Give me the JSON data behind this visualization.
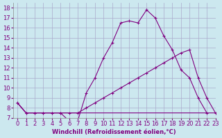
{
  "xlabel": "Windchill (Refroidissement éolien,°C)",
  "background_color": "#cce8ef",
  "grid_color": "#aaaacc",
  "line_color": "#800080",
  "xlim": [
    -0.5,
    23
  ],
  "ylim": [
    7,
    18.5
  ],
  "xticks": [
    0,
    1,
    2,
    3,
    4,
    5,
    6,
    7,
    8,
    9,
    10,
    11,
    12,
    13,
    14,
    15,
    16,
    17,
    18,
    19,
    20,
    21,
    22,
    23
  ],
  "yticks": [
    7,
    8,
    9,
    10,
    11,
    12,
    13,
    14,
    15,
    16,
    17,
    18
  ],
  "line1_x": [
    0,
    1,
    2,
    3,
    4,
    5,
    6,
    7,
    8,
    9,
    10,
    11,
    12,
    13,
    14,
    15,
    16,
    17,
    18,
    19,
    20,
    21,
    22
  ],
  "line1_y": [
    8.5,
    7.5,
    7.5,
    7.5,
    7.5,
    7.5,
    6.7,
    6.7,
    9.5,
    11.0,
    13.0,
    14.5,
    16.5,
    16.7,
    16.5,
    17.8,
    17.0,
    15.2,
    13.8,
    11.8,
    11.0,
    9.0,
    7.5
  ],
  "line2_x": [
    0,
    1,
    2,
    3,
    4,
    5,
    6,
    7,
    8,
    9,
    10,
    11,
    12,
    13,
    14,
    15,
    16,
    17,
    18,
    19,
    20,
    21,
    22,
    23
  ],
  "line2_y": [
    8.5,
    7.5,
    7.5,
    7.5,
    7.5,
    7.5,
    7.5,
    7.5,
    7.5,
    7.5,
    7.5,
    7.5,
    7.5,
    7.5,
    7.5,
    7.5,
    7.5,
    7.5,
    7.5,
    7.5,
    7.5,
    7.5,
    7.5,
    7.5
  ],
  "line3_x": [
    0,
    1,
    2,
    3,
    4,
    5,
    6,
    7,
    8,
    9,
    10,
    11,
    12,
    13,
    14,
    15,
    16,
    17,
    18,
    19,
    20,
    21,
    22,
    23
  ],
  "line3_y": [
    8.5,
    7.5,
    7.5,
    7.5,
    7.5,
    7.5,
    7.5,
    7.5,
    8.0,
    8.5,
    9.0,
    9.5,
    10.0,
    10.5,
    11.0,
    11.5,
    12.0,
    12.5,
    13.0,
    13.5,
    13.8,
    11.0,
    9.0,
    7.5
  ],
  "tick_fontsize": 6,
  "label_fontsize": 6
}
